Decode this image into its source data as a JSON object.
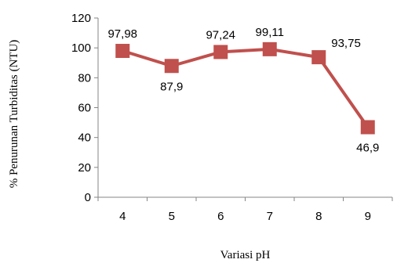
{
  "chart_data": {
    "type": "line",
    "title": "",
    "xlabel": "Variasi pH",
    "ylabel": "% Penurunan Turbiditas (NTU)",
    "categories": [
      "4",
      "5",
      "6",
      "7",
      "8",
      "9"
    ],
    "series": [
      {
        "values": [
          97.98,
          87.9,
          97.24,
          99.11,
          93.75,
          46.9
        ],
        "labels": [
          "97,98",
          "87,9",
          "97,24",
          "99,11",
          "93,75",
          "46,9"
        ],
        "label_positions": [
          "above",
          "below",
          "above",
          "above",
          "right",
          "below"
        ],
        "color": "#C0504D",
        "marker": "square"
      }
    ],
    "ylim": [
      0,
      120
    ],
    "yticks": [
      0,
      20,
      40,
      60,
      80,
      100,
      120
    ],
    "grid": false,
    "legend": "none"
  }
}
